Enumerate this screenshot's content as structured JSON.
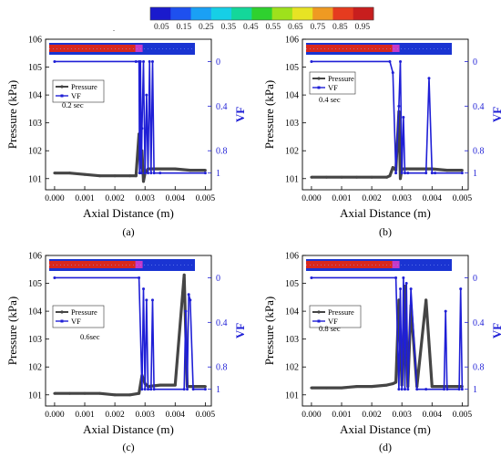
{
  "colorbar": {
    "ticks": [
      "0.05",
      "0.15",
      "0.25",
      "0.35",
      "0.45",
      "0.55",
      "0.65",
      "0.75",
      "0.85",
      "0.95"
    ],
    "colors": [
      "#1a1acd",
      "#1e50ef",
      "#1aa0f5",
      "#16cfe6",
      "#14d79a",
      "#2fd12f",
      "#9ee11c",
      "#e7e324",
      "#ef9a22",
      "#e53b1f",
      "#c81e1e"
    ]
  },
  "chart_data": [
    {
      "type": "line",
      "panel_label": "(a)",
      "annotation": "0.2 sec",
      "xlabel": "Axial Distance (m)",
      "ylabel": "Pressure (kPa)",
      "y2label": "VF",
      "xlim": [
        -0.0003,
        0.0052
      ],
      "ylim": [
        100.6,
        106.0
      ],
      "y2lim": [
        1.15,
        -0.2
      ],
      "xticks": [
        "0.000",
        "0.001",
        "0.002",
        "0.003",
        "0.004",
        "0.005"
      ],
      "yticks": [
        "101",
        "102",
        "103",
        "104",
        "105",
        "106"
      ],
      "y2ticks": [
        "0",
        "0.4",
        "0.8",
        "1"
      ],
      "series": [
        {
          "name": "Pressure",
          "axis": "left",
          "color": "#454545",
          "x": [
            0,
            0.0005,
            0.001,
            0.0015,
            0.002,
            0.0025,
            0.0027,
            0.0028,
            0.00285,
            0.0029,
            0.00295,
            0.003,
            0.0031,
            0.0032,
            0.0035,
            0.004,
            0.0045,
            0.005
          ],
          "y": [
            101.2,
            101.2,
            101.15,
            101.1,
            101.1,
            101.1,
            101.1,
            102.6,
            101.4,
            102.0,
            100.9,
            101.2,
            101.35,
            101.35,
            101.35,
            101.35,
            101.3,
            101.3
          ]
        },
        {
          "name": "VF",
          "axis": "right",
          "color": "#1f1fd6",
          "x": [
            0,
            0.0027,
            0.0028,
            0.00282,
            0.00285,
            0.00288,
            0.0029,
            0.00295,
            0.003,
            0.00305,
            0.0031,
            0.00315,
            0.0032,
            0.00325,
            0.0033,
            0.0035,
            0.005
          ],
          "y": [
            0,
            0,
            0,
            1,
            0,
            1,
            0.6,
            0,
            1,
            0.3,
            1,
            0,
            1,
            0,
            1,
            1,
            1
          ]
        }
      ]
    },
    {
      "type": "line",
      "panel_label": "(b)",
      "annotation": "0.4 sec",
      "xlabel": "Axial Distance (m)",
      "ylabel": "Pressure (kPa)",
      "y2label": "VF",
      "xlim": [
        -0.0003,
        0.0052
      ],
      "ylim": [
        100.6,
        106.0
      ],
      "y2lim": [
        1.15,
        -0.2
      ],
      "xticks": [
        "0.000",
        "0.001",
        "0.002",
        "0.003",
        "0.004",
        "0.005"
      ],
      "yticks": [
        "101",
        "102",
        "103",
        "104",
        "105",
        "106"
      ],
      "y2ticks": [
        "0",
        "0.4",
        "0.8",
        "1"
      ],
      "series": [
        {
          "name": "Pressure",
          "axis": "left",
          "color": "#454545",
          "x": [
            0,
            0.0005,
            0.001,
            0.0015,
            0.002,
            0.0025,
            0.0026,
            0.0027,
            0.0028,
            0.0029,
            0.00295,
            0.003,
            0.0035,
            0.004,
            0.0045,
            0.005
          ],
          "y": [
            101.05,
            101.05,
            101.05,
            101.05,
            101.05,
            101.05,
            101.1,
            101.4,
            101.3,
            103.4,
            101.0,
            101.35,
            101.35,
            101.35,
            101.3,
            101.3
          ]
        },
        {
          "name": "VF",
          "axis": "right",
          "color": "#1f1fd6",
          "x": [
            0,
            0.0026,
            0.0027,
            0.0028,
            0.0029,
            0.00295,
            0.003,
            0.00305,
            0.0031,
            0.0032,
            0.0038,
            0.0039,
            0.004,
            0.0041,
            0.005
          ],
          "y": [
            0,
            0,
            0.1,
            1,
            0.4,
            0,
            1,
            0.5,
            1,
            1,
            1,
            0.15,
            1,
            1,
            1
          ]
        }
      ]
    },
    {
      "type": "line",
      "panel_label": "(c)",
      "annotation": "0.6sec",
      "xlabel": "Axial Distance (m)",
      "ylabel": "Pressure (kPa)",
      "y2label": "VF",
      "xlim": [
        -0.0003,
        0.0052
      ],
      "ylim": [
        100.6,
        106.0
      ],
      "y2lim": [
        1.15,
        -0.2
      ],
      "xticks": [
        "0.000",
        "0.001",
        "0.002",
        "0.003",
        "0.004",
        "0.005"
      ],
      "yticks": [
        "101",
        "102",
        "103",
        "104",
        "105",
        "106"
      ],
      "y2ticks": [
        "0",
        "0.4",
        "0.8",
        "1"
      ],
      "series": [
        {
          "name": "Pressure",
          "axis": "left",
          "color": "#454545",
          "x": [
            0,
            0.0005,
            0.001,
            0.0015,
            0.002,
            0.0025,
            0.0028,
            0.0029,
            0.003,
            0.0031,
            0.0035,
            0.004,
            0.0043,
            0.0044,
            0.0045,
            0.005
          ],
          "y": [
            101.05,
            101.05,
            101.05,
            101.05,
            101.0,
            101.0,
            101.05,
            101.7,
            101.4,
            101.3,
            101.35,
            101.35,
            105.3,
            101.3,
            101.3,
            101.3
          ]
        },
        {
          "name": "VF",
          "axis": "right",
          "color": "#1f1fd6",
          "x": [
            0,
            0.0028,
            0.0029,
            0.00295,
            0.003,
            0.00305,
            0.0031,
            0.0032,
            0.00325,
            0.0033,
            0.0043,
            0.00435,
            0.0044,
            0.00445,
            0.0045,
            0.0046,
            0.005
          ],
          "y": [
            0,
            0,
            1,
            0.1,
            1,
            0.2,
            1,
            1,
            0.2,
            1,
            1,
            0.3,
            1,
            0.15,
            0.2,
            1,
            1
          ]
        }
      ]
    },
    {
      "type": "line",
      "panel_label": "(d)",
      "annotation": "0.8 sec",
      "xlabel": "Axial Distance (m)",
      "ylabel": "Pressure (kPa)",
      "y2label": "VF",
      "xlim": [
        -0.0003,
        0.0052
      ],
      "ylim": [
        100.6,
        106.0
      ],
      "y2lim": [
        1.15,
        -0.2
      ],
      "xticks": [
        "0.000",
        "0.001",
        "0.002",
        "0.003",
        "0.004",
        "0.005"
      ],
      "yticks": [
        "101",
        "102",
        "103",
        "104",
        "105",
        "106"
      ],
      "y2ticks": [
        "0",
        "0.4",
        "0.8",
        "1"
      ],
      "series": [
        {
          "name": "Pressure",
          "axis": "left",
          "color": "#454545",
          "x": [
            0,
            0.0005,
            0.001,
            0.0015,
            0.002,
            0.0025,
            0.0027,
            0.0028,
            0.0029,
            0.003,
            0.0031,
            0.0032,
            0.0033,
            0.0035,
            0.0038,
            0.004,
            0.0045,
            0.005
          ],
          "y": [
            101.25,
            101.25,
            101.25,
            101.3,
            101.3,
            101.35,
            101.4,
            101.45,
            104.4,
            101.35,
            104.9,
            101.3,
            104.2,
            101.3,
            104.4,
            101.3,
            101.3,
            101.3
          ]
        },
        {
          "name": "VF",
          "axis": "right",
          "color": "#1f1fd6",
          "x": [
            0,
            0.0028,
            0.0029,
            0.00295,
            0.003,
            0.00305,
            0.0031,
            0.00315,
            0.0032,
            0.0033,
            0.0035,
            0.0038,
            0.0044,
            0.00445,
            0.0045,
            0.0049,
            0.00495,
            0.005
          ],
          "y": [
            0,
            0,
            1,
            0.1,
            1,
            0,
            1,
            0.05,
            1,
            0.1,
            1,
            1,
            1,
            0.3,
            1,
            1,
            0.1,
            1
          ]
        }
      ]
    }
  ],
  "legend": {
    "pressure_label": "Pressure",
    "vf_label": "VF"
  }
}
